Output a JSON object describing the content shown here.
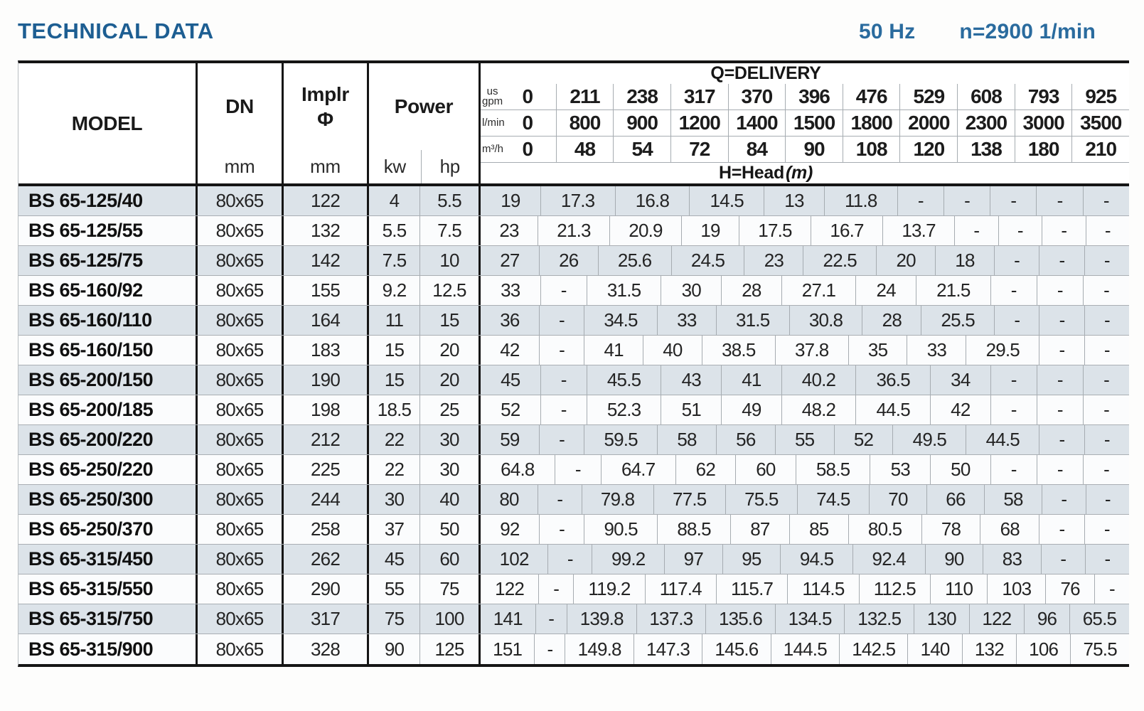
{
  "page_title": "TECHNICAL DATA",
  "frequency": "50 Hz",
  "speed": "n=2900 1/min",
  "accent_colors": {
    "title_blue": "#1d5e92",
    "freq_blue": "#2a6b9e",
    "stripe_gray": "#dce3e9"
  },
  "table": {
    "headers": {
      "model": "MODEL",
      "dn": "DN",
      "dn_unit": "mm",
      "impeller_line1": "Implr",
      "impeller_line2": "Φ",
      "impeller_unit": "mm",
      "power": "Power",
      "power_kw": "kw",
      "power_hp": "hp",
      "delivery_title": "Q=DELIVERY",
      "head_title_bold": "H=Head",
      "head_title_italic": "(m)",
      "unit_usgpm_line1": "us",
      "unit_usgpm_line2": "gpm",
      "unit_lmin": "l/min",
      "unit_m3h": "m³/h",
      "usgpm_values": [
        "0",
        "211",
        "238",
        "317",
        "370",
        "396",
        "476",
        "529",
        "608",
        "793",
        "925"
      ],
      "lmin_values": [
        "0",
        "800",
        "900",
        "1200",
        "1400",
        "1500",
        "1800",
        "2000",
        "2300",
        "3000",
        "3500"
      ],
      "m3h_values": [
        "0",
        "48",
        "54",
        "72",
        "84",
        "90",
        "108",
        "120",
        "138",
        "180",
        "210"
      ]
    },
    "rows": [
      {
        "model": "BS 65-125/40",
        "dn": "80x65",
        "impeller": "122",
        "kw": "4",
        "hp": "5.5",
        "head": [
          "19",
          "17.3",
          "16.8",
          "14.5",
          "13",
          "11.8",
          "-",
          "-",
          "-",
          "-",
          "-"
        ]
      },
      {
        "model": "BS 65-125/55",
        "dn": "80x65",
        "impeller": "132",
        "kw": "5.5",
        "hp": "7.5",
        "head": [
          "23",
          "21.3",
          "20.9",
          "19",
          "17.5",
          "16.7",
          "13.7",
          "-",
          "-",
          "-",
          "-"
        ]
      },
      {
        "model": "BS 65-125/75",
        "dn": "80x65",
        "impeller": "142",
        "kw": "7.5",
        "hp": "10",
        "head": [
          "27",
          "26",
          "25.6",
          "24.5",
          "23",
          "22.5",
          "20",
          "18",
          "-",
          "-",
          "-"
        ]
      },
      {
        "model": "BS 65-160/92",
        "dn": "80x65",
        "impeller": "155",
        "kw": "9.2",
        "hp": "12.5",
        "head": [
          "33",
          "-",
          "31.5",
          "30",
          "28",
          "27.1",
          "24",
          "21.5",
          "-",
          "-",
          "-"
        ]
      },
      {
        "model": "BS 65-160/110",
        "dn": "80x65",
        "impeller": "164",
        "kw": "11",
        "hp": "15",
        "head": [
          "36",
          "-",
          "34.5",
          "33",
          "31.5",
          "30.8",
          "28",
          "25.5",
          "-",
          "-",
          "-"
        ]
      },
      {
        "model": "BS 65-160/150",
        "dn": "80x65",
        "impeller": "183",
        "kw": "15",
        "hp": "20",
        "head": [
          "42",
          "-",
          "41",
          "40",
          "38.5",
          "37.8",
          "35",
          "33",
          "29.5",
          "-",
          "-"
        ]
      },
      {
        "model": "BS 65-200/150",
        "dn": "80x65",
        "impeller": "190",
        "kw": "15",
        "hp": "20",
        "head": [
          "45",
          "-",
          "45.5",
          "43",
          "41",
          "40.2",
          "36.5",
          "34",
          "-",
          "-",
          "-"
        ]
      },
      {
        "model": "BS 65-200/185",
        "dn": "80x65",
        "impeller": "198",
        "kw": "18.5",
        "hp": "25",
        "head": [
          "52",
          "-",
          "52.3",
          "51",
          "49",
          "48.2",
          "44.5",
          "42",
          "-",
          "-",
          "-"
        ]
      },
      {
        "model": "BS 65-200/220",
        "dn": "80x65",
        "impeller": "212",
        "kw": "22",
        "hp": "30",
        "head": [
          "59",
          "-",
          "59.5",
          "58",
          "56",
          "55",
          "52",
          "49.5",
          "44.5",
          "-",
          "-"
        ]
      },
      {
        "model": "BS 65-250/220",
        "dn": "80x65",
        "impeller": "225",
        "kw": "22",
        "hp": "30",
        "head": [
          "64.8",
          "-",
          "64.7",
          "62",
          "60",
          "58.5",
          "53",
          "50",
          "-",
          "-",
          "-"
        ]
      },
      {
        "model": "BS 65-250/300",
        "dn": "80x65",
        "impeller": "244",
        "kw": "30",
        "hp": "40",
        "head": [
          "80",
          "-",
          "79.8",
          "77.5",
          "75.5",
          "74.5",
          "70",
          "66",
          "58",
          "-",
          "-"
        ]
      },
      {
        "model": "BS 65-250/370",
        "dn": "80x65",
        "impeller": "258",
        "kw": "37",
        "hp": "50",
        "head": [
          "92",
          "-",
          "90.5",
          "88.5",
          "87",
          "85",
          "80.5",
          "78",
          "68",
          "-",
          "-"
        ]
      },
      {
        "model": "BS 65-315/450",
        "dn": "80x65",
        "impeller": "262",
        "kw": "45",
        "hp": "60",
        "head": [
          "102",
          "-",
          "99.2",
          "97",
          "95",
          "94.5",
          "92.4",
          "90",
          "83",
          "-",
          "-"
        ]
      },
      {
        "model": "BS 65-315/550",
        "dn": "80x65",
        "impeller": "290",
        "kw": "55",
        "hp": "75",
        "head": [
          "122",
          "-",
          "119.2",
          "117.4",
          "115.7",
          "114.5",
          "112.5",
          "110",
          "103",
          "76",
          "-"
        ]
      },
      {
        "model": "BS 65-315/750",
        "dn": "80x65",
        "impeller": "317",
        "kw": "75",
        "hp": "100",
        "head": [
          "141",
          "-",
          "139.8",
          "137.3",
          "135.6",
          "134.5",
          "132.5",
          "130",
          "122",
          "96",
          "65.5"
        ]
      },
      {
        "model": "BS 65-315/900",
        "dn": "80x65",
        "impeller": "328",
        "kw": "90",
        "hp": "125",
        "head": [
          "151",
          "-",
          "149.8",
          "147.3",
          "145.6",
          "144.5",
          "142.5",
          "140",
          "132",
          "106",
          "75.5"
        ]
      }
    ]
  }
}
